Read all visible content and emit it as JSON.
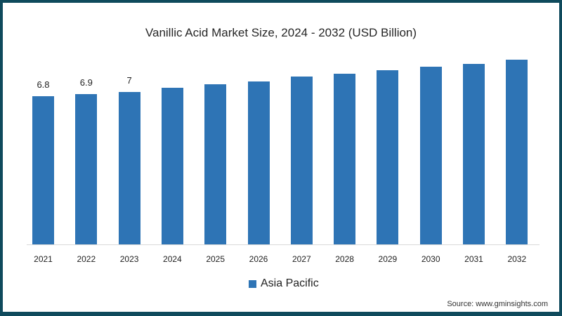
{
  "chart_data": {
    "type": "bar",
    "title": "Vanillic Acid Market Size, 2024 - 2032 (USD Billion)",
    "xlabel": "",
    "ylabel": "",
    "categories": [
      "2021",
      "2022",
      "2023",
      "2024",
      "2025",
      "2026",
      "2027",
      "2028",
      "2029",
      "2030",
      "2031",
      "2032"
    ],
    "series": [
      {
        "name": "Asia Pacific",
        "color": "#2e74b5",
        "values": [
          6.8,
          6.9,
          7.0,
          7.2,
          7.35,
          7.5,
          7.7,
          7.85,
          8.0,
          8.15,
          8.3,
          8.5
        ]
      }
    ],
    "data_labels": {
      "2021": "6.8",
      "2022": "6.9",
      "2023": "7"
    },
    "ylim": [
      0,
      9
    ],
    "grid": false,
    "legend_position": "bottom"
  },
  "title": "Vanillic Acid Market Size, 2024 - 2032 (USD Billion)",
  "legend": {
    "label": "Asia Pacific"
  },
  "source": "Source: www.gminsights.com",
  "colors": {
    "bar": "#2e74b5",
    "border": "#0f4a5c"
  }
}
